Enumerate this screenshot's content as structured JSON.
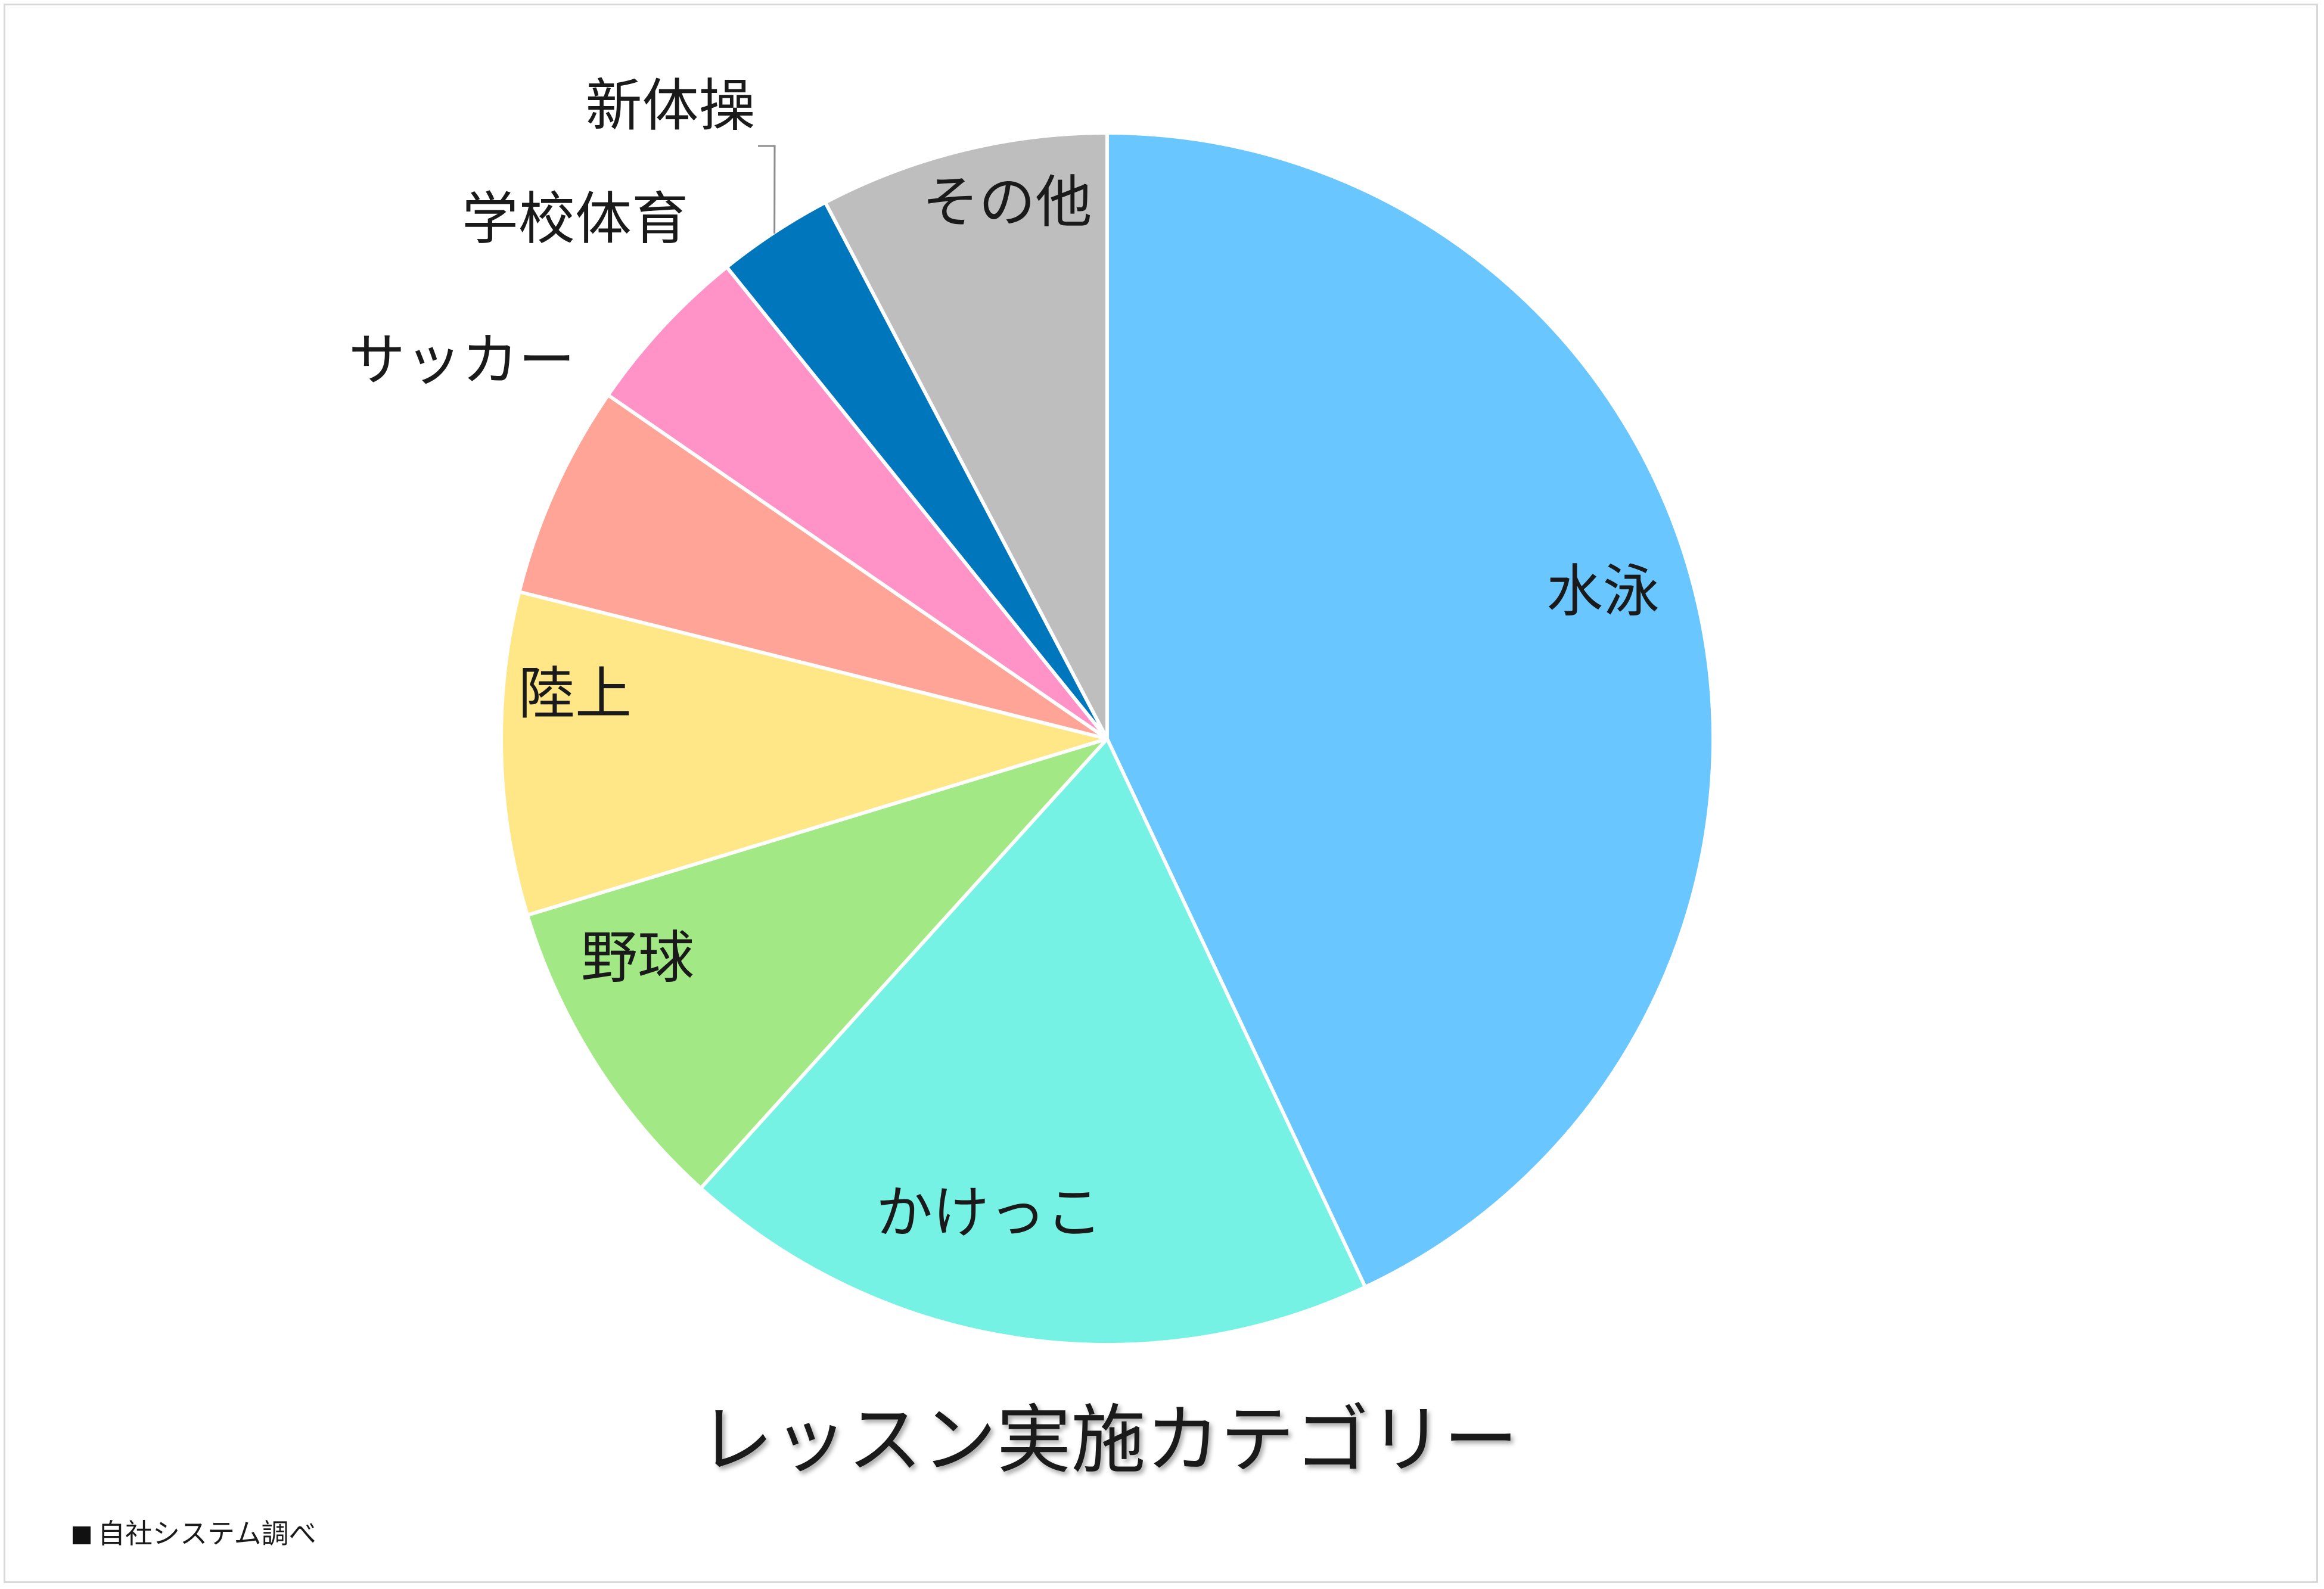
{
  "chart_data": {
    "type": "pie",
    "title": "レッスン実施カテゴリー",
    "start_angle": "top",
    "direction": "clockwise",
    "legend": "none",
    "slices": [
      {
        "label": "水泳",
        "value": 43.0,
        "color": "#69C6FE"
      },
      {
        "label": "かけっこ",
        "value": 18.7,
        "color": "#75F2E4"
      },
      {
        "label": "野球",
        "value": 8.6,
        "color": "#A2E985"
      },
      {
        "label": "陸上",
        "value": 8.6,
        "color": "#FFE687"
      },
      {
        "label": "サッカー",
        "value": 5.7,
        "color": "#FFA496"
      },
      {
        "label": "学校体育",
        "value": 4.6,
        "color": "#FF92C6"
      },
      {
        "label": "新体操",
        "value": 3.1,
        "color": "#0077BD"
      },
      {
        "label": "その他",
        "value": 7.7,
        "color": "#BEBEBE"
      }
    ]
  },
  "footnote": {
    "text": "自社システム調べ"
  }
}
